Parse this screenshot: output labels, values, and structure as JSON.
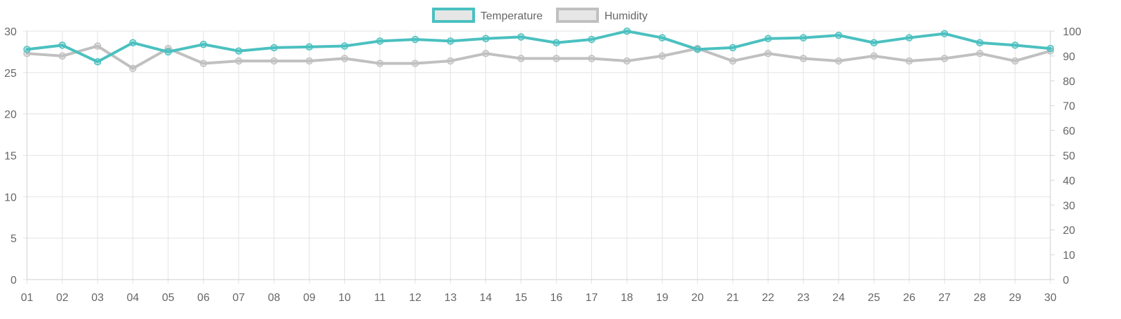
{
  "chart_data": {
    "type": "line",
    "categories": [
      "01",
      "02",
      "03",
      "04",
      "05",
      "06",
      "07",
      "08",
      "09",
      "10",
      "11",
      "12",
      "13",
      "14",
      "15",
      "16",
      "17",
      "18",
      "19",
      "20",
      "21",
      "22",
      "23",
      "24",
      "25",
      "26",
      "27",
      "28",
      "29",
      "30"
    ],
    "series": [
      {
        "name": "Temperature",
        "axis": "left",
        "color": "#4bc0c0",
        "values": [
          27.8,
          28.3,
          26.3,
          28.6,
          27.5,
          28.4,
          27.6,
          28.0,
          28.1,
          28.2,
          28.8,
          29.0,
          28.8,
          29.1,
          29.3,
          28.6,
          29.0,
          30.0,
          29.2,
          27.8,
          28.0,
          29.1,
          29.2,
          29.5,
          28.6,
          29.2,
          29.7,
          28.6,
          28.3,
          27.9
        ]
      },
      {
        "name": "Humidity",
        "axis": "right",
        "color": "#c0c0c0",
        "values": [
          91,
          90,
          94,
          85,
          93,
          87,
          88,
          88,
          88,
          89,
          87,
          87,
          88,
          91,
          89,
          89,
          89,
          88,
          90,
          93,
          88,
          91,
          89,
          88,
          90,
          88,
          89,
          91,
          88,
          92
        ]
      }
    ],
    "y_left": {
      "ylim": [
        0,
        30
      ],
      "ticks": [
        "0",
        "5",
        "10",
        "15",
        "20",
        "25",
        "30"
      ]
    },
    "y_right": {
      "ylim": [
        0,
        100
      ],
      "ticks": [
        "0",
        "10",
        "20",
        "30",
        "40",
        "50",
        "60",
        "70",
        "80",
        "90",
        "100"
      ]
    },
    "grid": true,
    "legend_position": "top-center"
  }
}
